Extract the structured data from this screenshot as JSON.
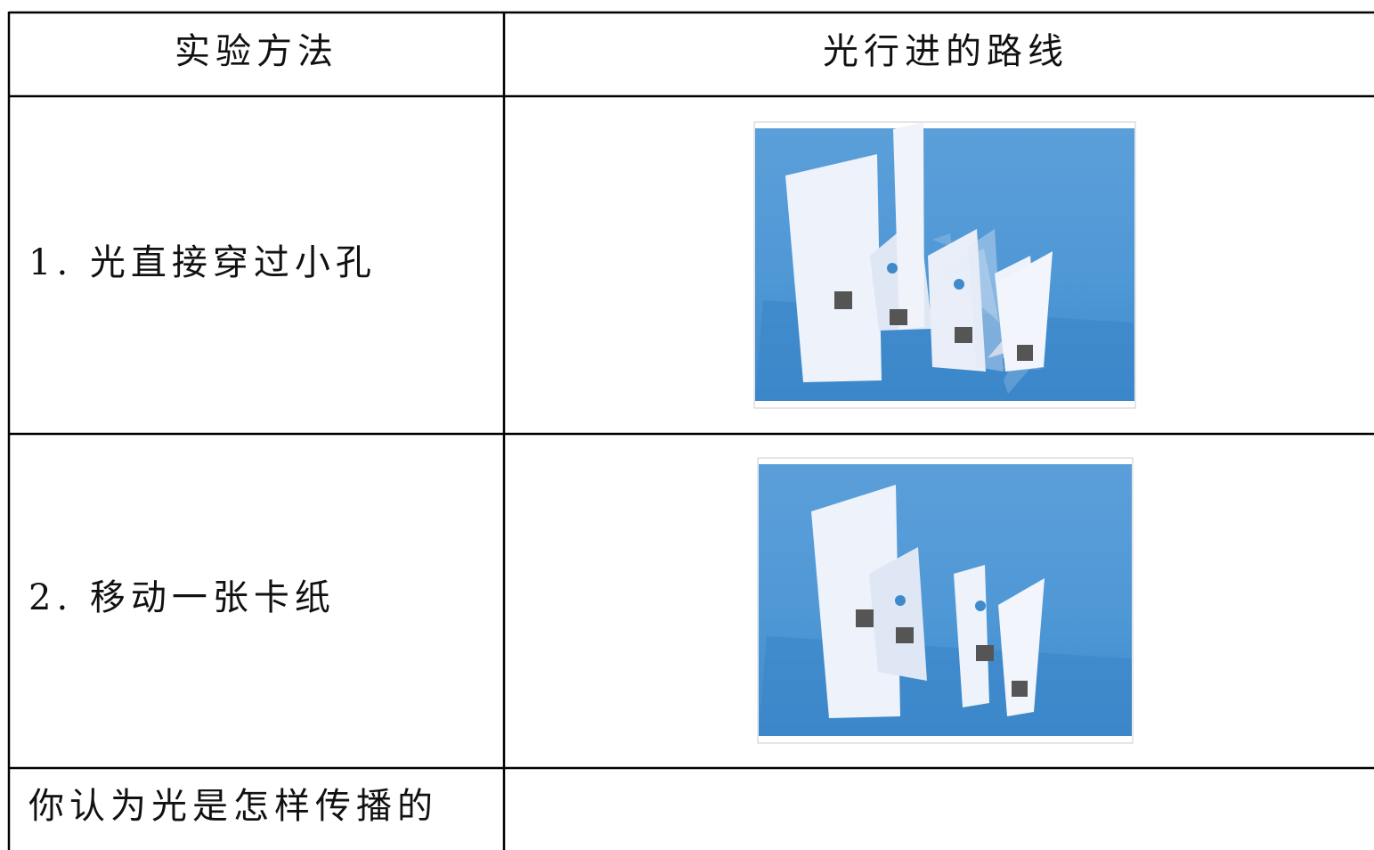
{
  "table": {
    "header": [
      "实验方法",
      "光行进的路线"
    ],
    "rows": [
      [
        "1. 光直接穿过小孔"
      ],
      [
        "2. 移动一张卡纸"
      ],
      [
        "你认为光是怎样传播的"
      ]
    ]
  }
}
